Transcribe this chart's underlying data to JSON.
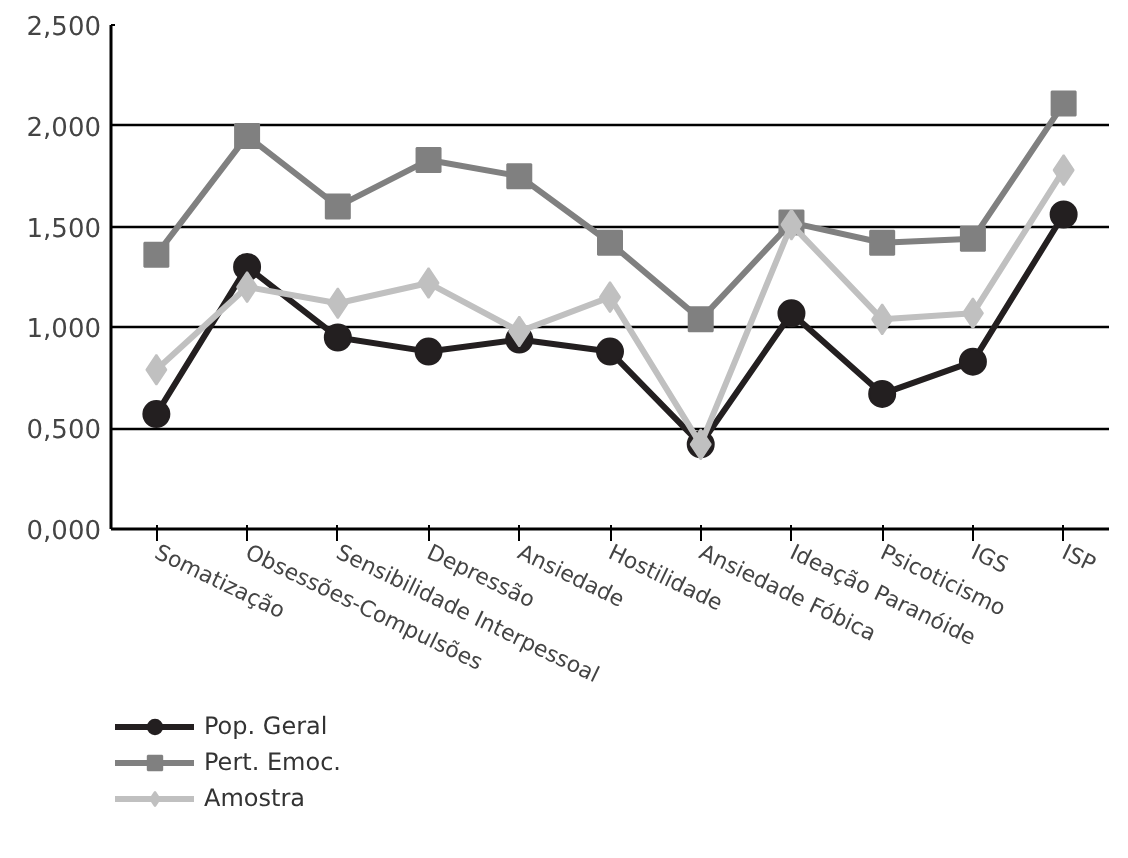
{
  "chart_data": {
    "type": "line",
    "categories": [
      "Somatização",
      "Obsessões-Compulsões",
      "Sensibilidade Interpessoal",
      "Depressão",
      "Ansiedade",
      "Hostilidade",
      "Ansiedade Fóbica",
      "Ideação Paranóide",
      "Psicoticismo",
      "IGS",
      "ISP"
    ],
    "series": [
      {
        "name": "Pop. Geral",
        "color": "#231f20",
        "marker": "circle",
        "values": [
          0.57,
          1.3,
          0.95,
          0.88,
          0.94,
          0.88,
          0.42,
          1.07,
          0.67,
          0.83,
          1.56
        ]
      },
      {
        "name": "Pert. Emoc.",
        "color": "#808080",
        "marker": "square",
        "values": [
          1.36,
          1.95,
          1.6,
          1.83,
          1.75,
          1.42,
          1.04,
          1.52,
          1.42,
          1.44,
          2.11
        ]
      },
      {
        "name": "Amostra",
        "color": "#c0c0c0",
        "marker": "diamond",
        "values": [
          0.79,
          1.2,
          1.12,
          1.22,
          0.98,
          1.15,
          0.42,
          1.51,
          1.04,
          1.07,
          1.78
        ]
      }
    ],
    "ylim": [
      0,
      2.5
    ],
    "yticks": [
      {
        "value": 0,
        "label": "0,000"
      },
      {
        "value": 0.5,
        "label": "0,500"
      },
      {
        "value": 1.0,
        "label": "1,000"
      },
      {
        "value": 1.5,
        "label": "1,500"
      },
      {
        "value": 2.0,
        "label": "2,000"
      },
      {
        "value": 2.5,
        "label": "2,500"
      }
    ],
    "grid": "y",
    "legend": "bottom",
    "line_style": "solid"
  }
}
